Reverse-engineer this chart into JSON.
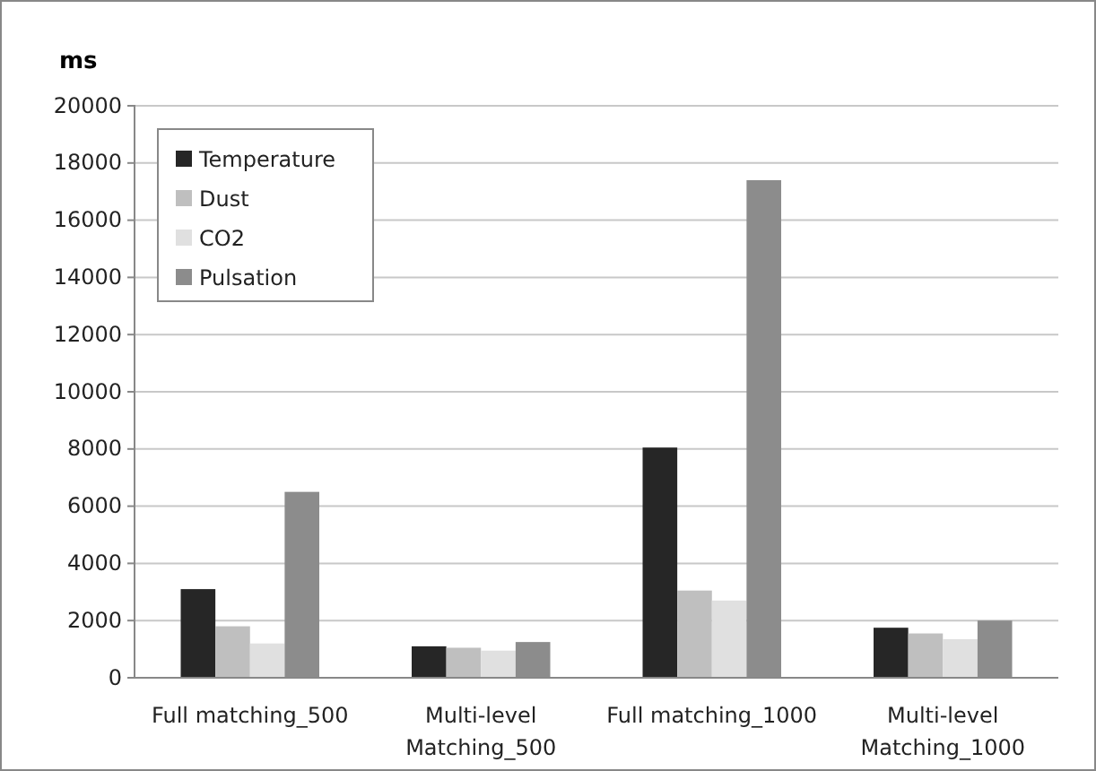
{
  "chart_data": {
    "type": "bar",
    "ylabel": "ms",
    "categories": [
      "Full matching_500",
      "Multi-level Matching_500",
      "Full matching_1000",
      "Multi-level Matching_1000"
    ],
    "series": [
      {
        "name": "Temperature",
        "color": "#262626",
        "values": [
          3100,
          1100,
          8050,
          1750
        ]
      },
      {
        "name": "Dust",
        "color": "#bfbfbf",
        "values": [
          1800,
          1050,
          3050,
          1550
        ]
      },
      {
        "name": "CO2",
        "color": "#e0e0e0",
        "values": [
          1200,
          950,
          2700,
          1350
        ]
      },
      {
        "name": "Pulsation",
        "color": "#8c8c8c",
        "values": [
          6500,
          1250,
          17400,
          2000
        ]
      }
    ],
    "ylim": [
      0,
      20000
    ],
    "yticks": [
      0,
      2000,
      4000,
      6000,
      8000,
      10000,
      12000,
      14000,
      16000,
      18000,
      20000
    ],
    "grid": "y",
    "legend": "top left"
  }
}
